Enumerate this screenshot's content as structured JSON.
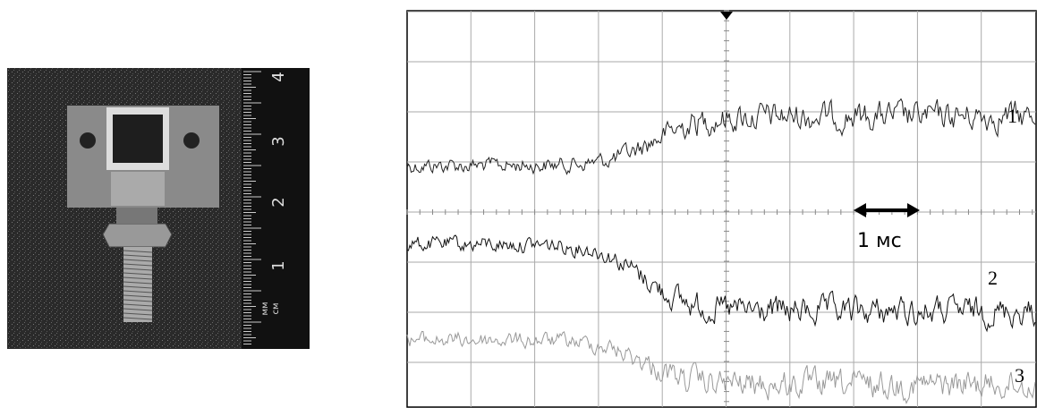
{
  "photo": {
    "ruler_labels": [
      "1",
      "2",
      "3",
      "4"
    ],
    "ruler_units": [
      "мм",
      "см"
    ]
  },
  "oscillogram": {
    "trace_labels": [
      "1",
      "2",
      "3"
    ],
    "scale_label": "1 мс"
  }
}
